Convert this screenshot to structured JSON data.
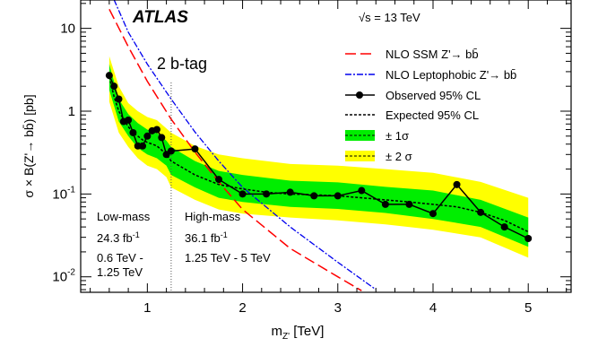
{
  "chart_data": {
    "type": "line",
    "y_scale": "log",
    "xlim": [
      0.3,
      5.45
    ],
    "ylim": [
      0.0065,
      22
    ],
    "xlabel": "m",
    "xlabel_sub": "Z'",
    "xlabel_unit": " [TeV]",
    "ylabel": "σ × B(Z'→ bb̄) [pb]",
    "x_ticks": [
      "1",
      "2",
      "3",
      "4",
      "5"
    ],
    "y_ticks": [
      {
        "value": 10,
        "base": "10",
        "exp": ""
      },
      {
        "value": 1,
        "base": "1",
        "exp": ""
      },
      {
        "value": 0.1,
        "base": "10",
        "exp": "-1"
      },
      {
        "value": 0.01,
        "base": "10",
        "exp": "-2"
      }
    ],
    "atlas_label": "ATLAS",
    "energy_label": "√s = 13 TeV",
    "category_label": "2 b-tag",
    "low_mass": {
      "title": "Low-mass",
      "lumi": "24.3 fb",
      "lumi_exp": "-1",
      "range1": "0.6 TeV -",
      "range2": "1.25 TeV"
    },
    "high_mass": {
      "title": "High-mass",
      "lumi": "36.1 fb",
      "lumi_exp": "-1",
      "range1": "1.25 TeV - 5 TeV"
    },
    "divider_x": 1.25,
    "legend": {
      "ssm": "NLO SSM Z'→ bb̄",
      "lepto": "NLO Leptophobic Z'→ bb̄",
      "observed": "Observed 95% CL",
      "expected": "Expected 95% CL",
      "one_sigma": "± 1σ",
      "two_sigma": "± 2 σ"
    },
    "colors": {
      "ssm": "#ff0000",
      "lepto": "#0000ee",
      "observed": "#000000",
      "expected": "#000000",
      "one_sigma": "#00ee00",
      "two_sigma": "#ffff00"
    },
    "series": [
      {
        "name": "Observed 95% CL",
        "x": [
          0.6,
          0.65,
          0.7,
          0.75,
          0.8,
          0.85,
          0.9,
          0.95,
          1.0,
          1.05,
          1.1,
          1.15,
          1.2,
          1.25,
          1.5,
          1.75,
          2.0,
          2.25,
          2.5,
          2.75,
          3.0,
          3.25,
          3.5,
          3.75,
          4.0,
          4.25,
          4.5,
          4.75,
          5.0
        ],
        "y": [
          2.7,
          2.0,
          1.4,
          0.75,
          0.78,
          0.55,
          0.38,
          0.38,
          0.5,
          0.58,
          0.6,
          0.48,
          0.3,
          0.33,
          0.35,
          0.15,
          0.1,
          0.1,
          0.105,
          0.095,
          0.095,
          0.11,
          0.075,
          0.075,
          0.058,
          0.13,
          0.06,
          0.04,
          0.029
        ]
      },
      {
        "name": "Expected 95% CL",
        "x": [
          0.6,
          0.65,
          0.7,
          0.75,
          0.8,
          0.85,
          0.9,
          0.95,
          1.0,
          1.05,
          1.1,
          1.15,
          1.2,
          1.25,
          1.5,
          1.75,
          2.0,
          2.25,
          2.5,
          2.75,
          3.0,
          3.25,
          3.5,
          3.75,
          4.0,
          4.25,
          4.5,
          4.75,
          5.0
        ],
        "y": [
          2.6,
          1.5,
          1.0,
          0.8,
          0.65,
          0.55,
          0.5,
          0.45,
          0.42,
          0.4,
          0.38,
          0.34,
          0.3,
          0.25,
          0.17,
          0.13,
          0.115,
          0.105,
          0.1,
          0.098,
          0.095,
          0.09,
          0.085,
          0.08,
          0.075,
          0.07,
          0.06,
          0.048,
          0.035
        ]
      },
      {
        "name": "± 1σ",
        "x": [
          0.6,
          0.7,
          0.8,
          0.9,
          1.0,
          1.1,
          1.2,
          1.25,
          1.5,
          1.75,
          2.0,
          2.5,
          3.0,
          3.5,
          4.0,
          4.5,
          5.0
        ],
        "lo": [
          1.8,
          0.75,
          0.5,
          0.36,
          0.3,
          0.27,
          0.22,
          0.17,
          0.12,
          0.09,
          0.08,
          0.07,
          0.066,
          0.059,
          0.05,
          0.04,
          0.023
        ],
        "hi": [
          3.7,
          1.4,
          0.92,
          0.72,
          0.6,
          0.55,
          0.44,
          0.37,
          0.25,
          0.19,
          0.17,
          0.145,
          0.138,
          0.122,
          0.11,
          0.085,
          0.052
        ]
      },
      {
        "name": "± 2 σ",
        "x": [
          0.6,
          0.7,
          0.8,
          0.9,
          1.0,
          1.1,
          1.2,
          1.25,
          1.5,
          1.75,
          2.0,
          2.5,
          3.0,
          3.5,
          4.0,
          4.5,
          5.0
        ],
        "lo": [
          1.3,
          0.55,
          0.37,
          0.27,
          0.22,
          0.2,
          0.16,
          0.12,
          0.085,
          0.065,
          0.058,
          0.052,
          0.048,
          0.043,
          0.037,
          0.03,
          0.017
        ],
        "hi": [
          4.6,
          2.0,
          1.25,
          1.0,
          0.85,
          0.78,
          0.62,
          0.55,
          0.38,
          0.3,
          0.27,
          0.23,
          0.22,
          0.2,
          0.18,
          0.14,
          0.09
        ]
      },
      {
        "name": "NLO SSM Z'→ bb̄",
        "x": [
          0.6,
          0.8,
          1.0,
          1.25,
          1.5,
          1.75,
          2.0,
          2.5,
          3.0,
          3.25
        ],
        "y": [
          17,
          6.0,
          2.3,
          0.8,
          0.32,
          0.14,
          0.065,
          0.022,
          0.01,
          0.0068
        ]
      },
      {
        "name": "NLO Leptophobic Z'→ bb̄",
        "x": [
          0.6,
          0.8,
          1.0,
          1.25,
          1.5,
          1.75,
          2.0,
          2.5,
          3.0,
          3.4
        ],
        "y": [
          30,
          9.0,
          3.7,
          1.4,
          0.56,
          0.25,
          0.12,
          0.04,
          0.015,
          0.007
        ]
      }
    ]
  }
}
